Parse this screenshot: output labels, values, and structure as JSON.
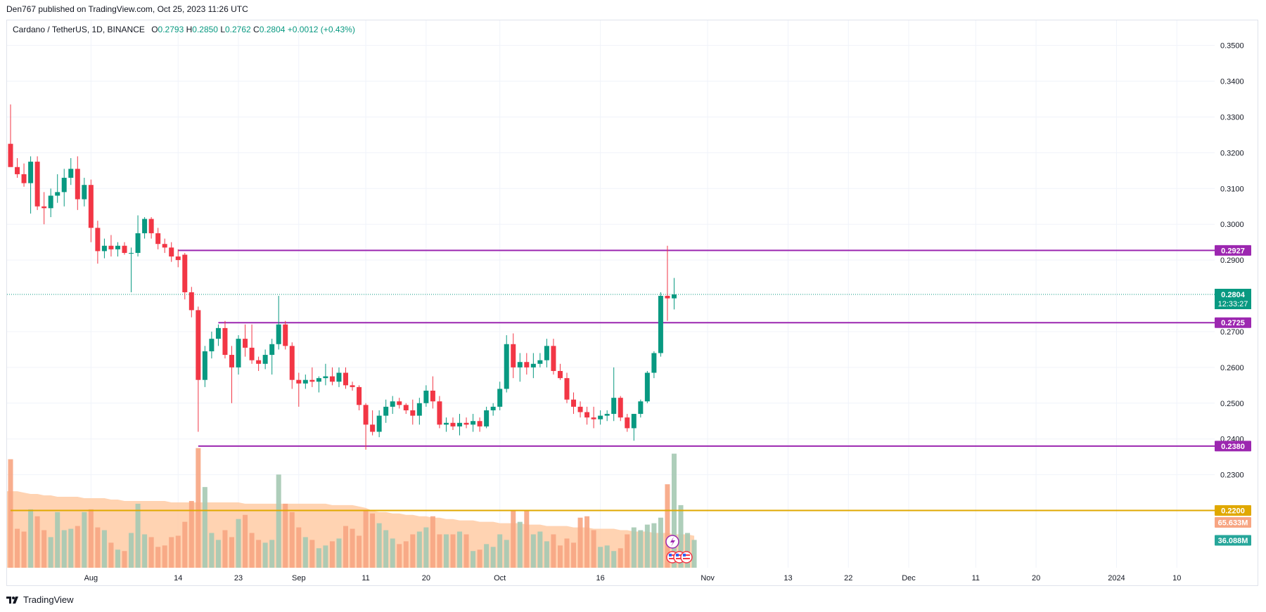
{
  "header": {
    "published": "Den767 published on TradingView.com, Oct 25, 2023 11:26 UTC"
  },
  "legend": {
    "symbol": "Cardano / TetherUS, 1D, BINANCE",
    "o_label": "O",
    "o_value": "0.2793",
    "h_label": "H",
    "h_value": "0.2850",
    "l_label": "L",
    "l_value": "0.2762",
    "c_label": "C",
    "c_value": "0.2804",
    "change": "+0.0012 (+0.43%)"
  },
  "footer": {
    "brand": "TradingView"
  },
  "colors": {
    "up": "#089981",
    "down": "#f23645",
    "level": "#9c27b0",
    "support": "#e0a800",
    "vol_up": "#a5c9b3",
    "vol_down": "#f7a582",
    "vol_ma": "#ffcba4",
    "price_tag": "#089981"
  },
  "chart_data": {
    "type": "candlestick",
    "y_axis": {
      "ticks": [
        "0.3500",
        "0.3400",
        "0.3300",
        "0.3200",
        "0.3100",
        "0.3000",
        "0.2900",
        "0.2700",
        "0.2600",
        "0.2500",
        "0.2400",
        "0.2300"
      ],
      "range": [
        0.204,
        0.357
      ]
    },
    "x_axis": {
      "ticks": [
        {
          "label": "Aug",
          "date": "2023-08-01"
        },
        {
          "label": "14",
          "date": "2023-08-14"
        },
        {
          "label": "23",
          "date": "2023-08-23"
        },
        {
          "label": "Sep",
          "date": "2023-09-01"
        },
        {
          "label": "11",
          "date": "2023-09-11"
        },
        {
          "label": "20",
          "date": "2023-09-20"
        },
        {
          "label": "Oct",
          "date": "2023-10-01"
        },
        {
          "label": "16",
          "date": "2023-10-16"
        },
        {
          "label": "Nov",
          "date": "2023-11-01"
        },
        {
          "label": "13",
          "date": "2023-11-13"
        },
        {
          "label": "22",
          "date": "2023-11-22"
        },
        {
          "label": "Dec",
          "date": "2023-12-01"
        },
        {
          "label": "11",
          "date": "2023-12-11"
        },
        {
          "label": "20",
          "date": "2023-12-20"
        },
        {
          "label": "2024",
          "date": "2024-01-01"
        },
        {
          "label": "10",
          "date": "2024-01-10"
        }
      ]
    },
    "candles": [
      {
        "date": "2023-07-20",
        "o": 0.3225,
        "h": 0.3335,
        "l": 0.317,
        "c": 0.316
      },
      {
        "date": "2023-07-21",
        "o": 0.316,
        "h": 0.3185,
        "l": 0.313,
        "c": 0.314
      },
      {
        "date": "2023-07-22",
        "o": 0.314,
        "h": 0.317,
        "l": 0.3105,
        "c": 0.3115
      },
      {
        "date": "2023-07-23",
        "o": 0.3115,
        "h": 0.319,
        "l": 0.303,
        "c": 0.3175
      },
      {
        "date": "2023-07-24",
        "o": 0.3175,
        "h": 0.319,
        "l": 0.304,
        "c": 0.305
      },
      {
        "date": "2023-07-25",
        "o": 0.305,
        "h": 0.309,
        "l": 0.3,
        "c": 0.3045
      },
      {
        "date": "2023-07-26",
        "o": 0.3045,
        "h": 0.31,
        "l": 0.302,
        "c": 0.308
      },
      {
        "date": "2023-07-27",
        "o": 0.308,
        "h": 0.314,
        "l": 0.306,
        "c": 0.309
      },
      {
        "date": "2023-07-28",
        "o": 0.309,
        "h": 0.3155,
        "l": 0.305,
        "c": 0.313
      },
      {
        "date": "2023-07-29",
        "o": 0.313,
        "h": 0.3185,
        "l": 0.311,
        "c": 0.3155
      },
      {
        "date": "2023-07-30",
        "o": 0.3155,
        "h": 0.319,
        "l": 0.304,
        "c": 0.307
      },
      {
        "date": "2023-07-31",
        "o": 0.307,
        "h": 0.313,
        "l": 0.305,
        "c": 0.311
      },
      {
        "date": "2023-08-01",
        "o": 0.311,
        "h": 0.3125,
        "l": 0.295,
        "c": 0.299
      },
      {
        "date": "2023-08-02",
        "o": 0.299,
        "h": 0.301,
        "l": 0.289,
        "c": 0.2925
      },
      {
        "date": "2023-08-03",
        "o": 0.2925,
        "h": 0.296,
        "l": 0.2905,
        "c": 0.294
      },
      {
        "date": "2023-08-04",
        "o": 0.294,
        "h": 0.297,
        "l": 0.291,
        "c": 0.293
      },
      {
        "date": "2023-08-05",
        "o": 0.293,
        "h": 0.295,
        "l": 0.291,
        "c": 0.294
      },
      {
        "date": "2023-08-06",
        "o": 0.294,
        "h": 0.295,
        "l": 0.2915,
        "c": 0.292
      },
      {
        "date": "2023-08-07",
        "o": 0.292,
        "h": 0.2935,
        "l": 0.281,
        "c": 0.292
      },
      {
        "date": "2023-08-08",
        "o": 0.292,
        "h": 0.3025,
        "l": 0.291,
        "c": 0.2975
      },
      {
        "date": "2023-08-09",
        "o": 0.2975,
        "h": 0.302,
        "l": 0.296,
        "c": 0.3015
      },
      {
        "date": "2023-08-10",
        "o": 0.3015,
        "h": 0.302,
        "l": 0.296,
        "c": 0.2975
      },
      {
        "date": "2023-08-11",
        "o": 0.2975,
        "h": 0.299,
        "l": 0.293,
        "c": 0.2945
      },
      {
        "date": "2023-08-12",
        "o": 0.2945,
        "h": 0.296,
        "l": 0.292,
        "c": 0.2935
      },
      {
        "date": "2023-08-13",
        "o": 0.2935,
        "h": 0.295,
        "l": 0.2895,
        "c": 0.291
      },
      {
        "date": "2023-08-14",
        "o": 0.291,
        "h": 0.293,
        "l": 0.288,
        "c": 0.29
      },
      {
        "date": "2023-08-15",
        "o": 0.2915,
        "h": 0.292,
        "l": 0.279,
        "c": 0.281
      },
      {
        "date": "2023-08-16",
        "o": 0.281,
        "h": 0.2825,
        "l": 0.274,
        "c": 0.276
      },
      {
        "date": "2023-08-17",
        "o": 0.276,
        "h": 0.277,
        "l": 0.242,
        "c": 0.2565
      },
      {
        "date": "2023-08-18",
        "o": 0.2565,
        "h": 0.266,
        "l": 0.2545,
        "c": 0.2645
      },
      {
        "date": "2023-08-19",
        "o": 0.2645,
        "h": 0.27,
        "l": 0.2625,
        "c": 0.268
      },
      {
        "date": "2023-08-20",
        "o": 0.268,
        "h": 0.272,
        "l": 0.266,
        "c": 0.271
      },
      {
        "date": "2023-08-21",
        "o": 0.271,
        "h": 0.273,
        "l": 0.2625,
        "c": 0.2635
      },
      {
        "date": "2023-08-22",
        "o": 0.2635,
        "h": 0.266,
        "l": 0.25,
        "c": 0.26
      },
      {
        "date": "2023-08-23",
        "o": 0.26,
        "h": 0.269,
        "l": 0.258,
        "c": 0.268
      },
      {
        "date": "2023-08-24",
        "o": 0.268,
        "h": 0.272,
        "l": 0.263,
        "c": 0.2655
      },
      {
        "date": "2023-08-25",
        "o": 0.2655,
        "h": 0.272,
        "l": 0.261,
        "c": 0.262
      },
      {
        "date": "2023-08-26",
        "o": 0.262,
        "h": 0.263,
        "l": 0.259,
        "c": 0.261
      },
      {
        "date": "2023-08-27",
        "o": 0.261,
        "h": 0.265,
        "l": 0.2595,
        "c": 0.2635
      },
      {
        "date": "2023-08-28",
        "o": 0.2635,
        "h": 0.268,
        "l": 0.258,
        "c": 0.2665
      },
      {
        "date": "2023-08-29",
        "o": 0.2665,
        "h": 0.28,
        "l": 0.265,
        "c": 0.272
      },
      {
        "date": "2023-08-30",
        "o": 0.272,
        "h": 0.273,
        "l": 0.265,
        "c": 0.266
      },
      {
        "date": "2023-08-31",
        "o": 0.266,
        "h": 0.267,
        "l": 0.254,
        "c": 0.2565
      },
      {
        "date": "2023-09-01",
        "o": 0.2565,
        "h": 0.2585,
        "l": 0.249,
        "c": 0.2555
      },
      {
        "date": "2023-09-02",
        "o": 0.2555,
        "h": 0.258,
        "l": 0.254,
        "c": 0.2565
      },
      {
        "date": "2023-09-03",
        "o": 0.2565,
        "h": 0.26,
        "l": 0.2545,
        "c": 0.256
      },
      {
        "date": "2023-09-04",
        "o": 0.256,
        "h": 0.2575,
        "l": 0.253,
        "c": 0.257
      },
      {
        "date": "2023-09-05",
        "o": 0.257,
        "h": 0.261,
        "l": 0.255,
        "c": 0.2575
      },
      {
        "date": "2023-09-06",
        "o": 0.2575,
        "h": 0.26,
        "l": 0.255,
        "c": 0.256
      },
      {
        "date": "2023-09-07",
        "o": 0.256,
        "h": 0.26,
        "l": 0.2545,
        "c": 0.2585
      },
      {
        "date": "2023-09-08",
        "o": 0.2585,
        "h": 0.26,
        "l": 0.254,
        "c": 0.255
      },
      {
        "date": "2023-09-09",
        "o": 0.255,
        "h": 0.256,
        "l": 0.2535,
        "c": 0.2545
      },
      {
        "date": "2023-09-10",
        "o": 0.2545,
        "h": 0.255,
        "l": 0.248,
        "c": 0.2495
      },
      {
        "date": "2023-09-11",
        "o": 0.2495,
        "h": 0.25,
        "l": 0.237,
        "c": 0.244
      },
      {
        "date": "2023-09-12",
        "o": 0.244,
        "h": 0.248,
        "l": 0.241,
        "c": 0.242
      },
      {
        "date": "2023-09-13",
        "o": 0.242,
        "h": 0.248,
        "l": 0.2405,
        "c": 0.2465
      },
      {
        "date": "2023-09-14",
        "o": 0.2465,
        "h": 0.251,
        "l": 0.2445,
        "c": 0.249
      },
      {
        "date": "2023-09-15",
        "o": 0.249,
        "h": 0.252,
        "l": 0.247,
        "c": 0.2505
      },
      {
        "date": "2023-09-16",
        "o": 0.2505,
        "h": 0.2515,
        "l": 0.2485,
        "c": 0.2495
      },
      {
        "date": "2023-09-17",
        "o": 0.2495,
        "h": 0.25,
        "l": 0.247,
        "c": 0.248
      },
      {
        "date": "2023-09-18",
        "o": 0.248,
        "h": 0.251,
        "l": 0.244,
        "c": 0.2465
      },
      {
        "date": "2023-09-19",
        "o": 0.2465,
        "h": 0.2515,
        "l": 0.244,
        "c": 0.25
      },
      {
        "date": "2023-09-20",
        "o": 0.25,
        "h": 0.255,
        "l": 0.249,
        "c": 0.2535
      },
      {
        "date": "2023-09-21",
        "o": 0.2535,
        "h": 0.2575,
        "l": 0.2485,
        "c": 0.2505
      },
      {
        "date": "2023-09-22",
        "o": 0.2505,
        "h": 0.252,
        "l": 0.243,
        "c": 0.244
      },
      {
        "date": "2023-09-23",
        "o": 0.244,
        "h": 0.246,
        "l": 0.242,
        "c": 0.2445
      },
      {
        "date": "2023-09-24",
        "o": 0.2445,
        "h": 0.246,
        "l": 0.2425,
        "c": 0.2435
      },
      {
        "date": "2023-09-25",
        "o": 0.2435,
        "h": 0.247,
        "l": 0.241,
        "c": 0.2445
      },
      {
        "date": "2023-09-26",
        "o": 0.2445,
        "h": 0.246,
        "l": 0.243,
        "c": 0.244
      },
      {
        "date": "2023-09-27",
        "o": 0.244,
        "h": 0.247,
        "l": 0.242,
        "c": 0.245
      },
      {
        "date": "2023-09-28",
        "o": 0.245,
        "h": 0.246,
        "l": 0.242,
        "c": 0.2435
      },
      {
        "date": "2023-09-29",
        "o": 0.2435,
        "h": 0.249,
        "l": 0.243,
        "c": 0.248
      },
      {
        "date": "2023-09-30",
        "o": 0.248,
        "h": 0.25,
        "l": 0.2465,
        "c": 0.249
      },
      {
        "date": "2023-10-01",
        "o": 0.249,
        "h": 0.256,
        "l": 0.248,
        "c": 0.254
      },
      {
        "date": "2023-10-02",
        "o": 0.254,
        "h": 0.269,
        "l": 0.253,
        "c": 0.2665
      },
      {
        "date": "2023-10-03",
        "o": 0.2665,
        "h": 0.2695,
        "l": 0.257,
        "c": 0.26
      },
      {
        "date": "2023-10-04",
        "o": 0.26,
        "h": 0.264,
        "l": 0.256,
        "c": 0.2615
      },
      {
        "date": "2023-10-05",
        "o": 0.2615,
        "h": 0.264,
        "l": 0.258,
        "c": 0.26
      },
      {
        "date": "2023-10-06",
        "o": 0.26,
        "h": 0.264,
        "l": 0.257,
        "c": 0.261
      },
      {
        "date": "2023-10-07",
        "o": 0.261,
        "h": 0.264,
        "l": 0.26,
        "c": 0.262
      },
      {
        "date": "2023-10-08",
        "o": 0.262,
        "h": 0.268,
        "l": 0.26,
        "c": 0.266
      },
      {
        "date": "2023-10-09",
        "o": 0.266,
        "h": 0.268,
        "l": 0.258,
        "c": 0.259
      },
      {
        "date": "2023-10-10",
        "o": 0.259,
        "h": 0.261,
        "l": 0.2565,
        "c": 0.257
      },
      {
        "date": "2023-10-11",
        "o": 0.257,
        "h": 0.2585,
        "l": 0.25,
        "c": 0.251
      },
      {
        "date": "2023-10-12",
        "o": 0.251,
        "h": 0.253,
        "l": 0.247,
        "c": 0.249
      },
      {
        "date": "2023-10-13",
        "o": 0.249,
        "h": 0.2505,
        "l": 0.246,
        "c": 0.2475
      },
      {
        "date": "2023-10-14",
        "o": 0.2475,
        "h": 0.249,
        "l": 0.244,
        "c": 0.246
      },
      {
        "date": "2023-10-15",
        "o": 0.246,
        "h": 0.249,
        "l": 0.243,
        "c": 0.2455
      },
      {
        "date": "2023-10-16",
        "o": 0.2455,
        "h": 0.248,
        "l": 0.244,
        "c": 0.2465
      },
      {
        "date": "2023-10-17",
        "o": 0.2465,
        "h": 0.248,
        "l": 0.245,
        "c": 0.247
      },
      {
        "date": "2023-10-18",
        "o": 0.247,
        "h": 0.26,
        "l": 0.245,
        "c": 0.2515
      },
      {
        "date": "2023-10-19",
        "o": 0.2515,
        "h": 0.252,
        "l": 0.245,
        "c": 0.246
      },
      {
        "date": "2023-10-20",
        "o": 0.246,
        "h": 0.247,
        "l": 0.242,
        "c": 0.243
      },
      {
        "date": "2023-10-21",
        "o": 0.243,
        "h": 0.247,
        "l": 0.2395,
        "c": 0.247
      },
      {
        "date": "2023-10-22",
        "o": 0.247,
        "h": 0.251,
        "l": 0.246,
        "c": 0.2505
      },
      {
        "date": "2023-10-23",
        "o": 0.2505,
        "h": 0.259,
        "l": 0.25,
        "c": 0.2585
      },
      {
        "date": "2023-10-24",
        "o": 0.2585,
        "h": 0.2645,
        "l": 0.257,
        "c": 0.264
      },
      {
        "date": "2023-10-25",
        "o": 0.264,
        "h": 0.281,
        "l": 0.263,
        "c": 0.28
      },
      {
        "date": "2023-10-26",
        "o": 0.28,
        "h": 0.294,
        "l": 0.273,
        "c": 0.2793
      },
      {
        "date": "2023-10-27",
        "o": 0.2793,
        "h": 0.285,
        "l": 0.2762,
        "c": 0.2804
      }
    ],
    "volume_ma": [
      0.55,
      0.55,
      0.54,
      0.53,
      0.53,
      0.52,
      0.52,
      0.51,
      0.51,
      0.51,
      0.51,
      0.5,
      0.5,
      0.5,
      0.5,
      0.49,
      0.49,
      0.48,
      0.48,
      0.48,
      0.48,
      0.48,
      0.48,
      0.48,
      0.47,
      0.47,
      0.47,
      0.47,
      0.47,
      0.47,
      0.47,
      0.47,
      0.47,
      0.47,
      0.47,
      0.46,
      0.46,
      0.46,
      0.46,
      0.46,
      0.46,
      0.46,
      0.46,
      0.46,
      0.46,
      0.46,
      0.46,
      0.46,
      0.45,
      0.45,
      0.45,
      0.45,
      0.44,
      0.43,
      0.41,
      0.4,
      0.4,
      0.39,
      0.39,
      0.38,
      0.38,
      0.37,
      0.37,
      0.36,
      0.36,
      0.35,
      0.35,
      0.34,
      0.34,
      0.34,
      0.33,
      0.33,
      0.33,
      0.32,
      0.32,
      0.32,
      0.32,
      0.31,
      0.31,
      0.31,
      0.3,
      0.3,
      0.3,
      0.3,
      0.29,
      0.29,
      0.29,
      0.28,
      0.28,
      0.28,
      0.28,
      0.27,
      0.27,
      0.26,
      0.26,
      0.26,
      0.25,
      0.25,
      0.25,
      0.24,
      0.24,
      0.24,
      0.23
    ],
    "volume": [
      0.78,
      0.28,
      0.26,
      0.42,
      0.37,
      0.27,
      0.22,
      0.4,
      0.27,
      0.28,
      0.3,
      0.4,
      0.42,
      0.29,
      0.27,
      0.18,
      0.13,
      0.12,
      0.25,
      0.46,
      0.24,
      0.22,
      0.15,
      0.16,
      0.22,
      0.23,
      0.33,
      0.48,
      0.86,
      0.58,
      0.25,
      0.2,
      0.27,
      0.22,
      0.35,
      0.38,
      0.25,
      0.2,
      0.18,
      0.2,
      0.67,
      0.46,
      0.4,
      0.29,
      0.22,
      0.2,
      0.14,
      0.16,
      0.19,
      0.21,
      0.3,
      0.28,
      0.23,
      0.41,
      0.39,
      0.32,
      0.27,
      0.21,
      0.17,
      0.19,
      0.24,
      0.26,
      0.29,
      0.37,
      0.24,
      0.24,
      0.24,
      0.26,
      0.24,
      0.12,
      0.13,
      0.17,
      0.15,
      0.24,
      0.2,
      0.41,
      0.33,
      0.41,
      0.24,
      0.26,
      0.19,
      0.24,
      0.16,
      0.21,
      0.18,
      0.36,
      0.37,
      0.27,
      0.15,
      0.16,
      0.12,
      0.14,
      0.24,
      0.29,
      0.27,
      0.31,
      0.32,
      0.36,
      0.6,
      0.82,
      0.45,
      0.25,
      0.2
    ],
    "horizontal_levels": [
      {
        "label": "0.2927",
        "value": 0.2927,
        "color": "#9c27b0",
        "start": "2023-08-14"
      },
      {
        "label": "0.2725",
        "value": 0.2725,
        "color": "#9c27b0",
        "start": "2023-08-20"
      },
      {
        "label": "0.2380",
        "value": 0.238,
        "color": "#9c27b0",
        "start": "2023-08-17"
      },
      {
        "label": "0.2200",
        "value": 0.22,
        "color": "#e0a800",
        "start": "2023-07-20"
      }
    ],
    "last_price": {
      "label": "0.2804",
      "countdown": "12:33:27",
      "value": 0.2804
    },
    "volume_labels": [
      {
        "label": "65.633M",
        "color": "#f7a582"
      },
      {
        "label": "36.088M",
        "color": "#26a69a"
      }
    ]
  }
}
